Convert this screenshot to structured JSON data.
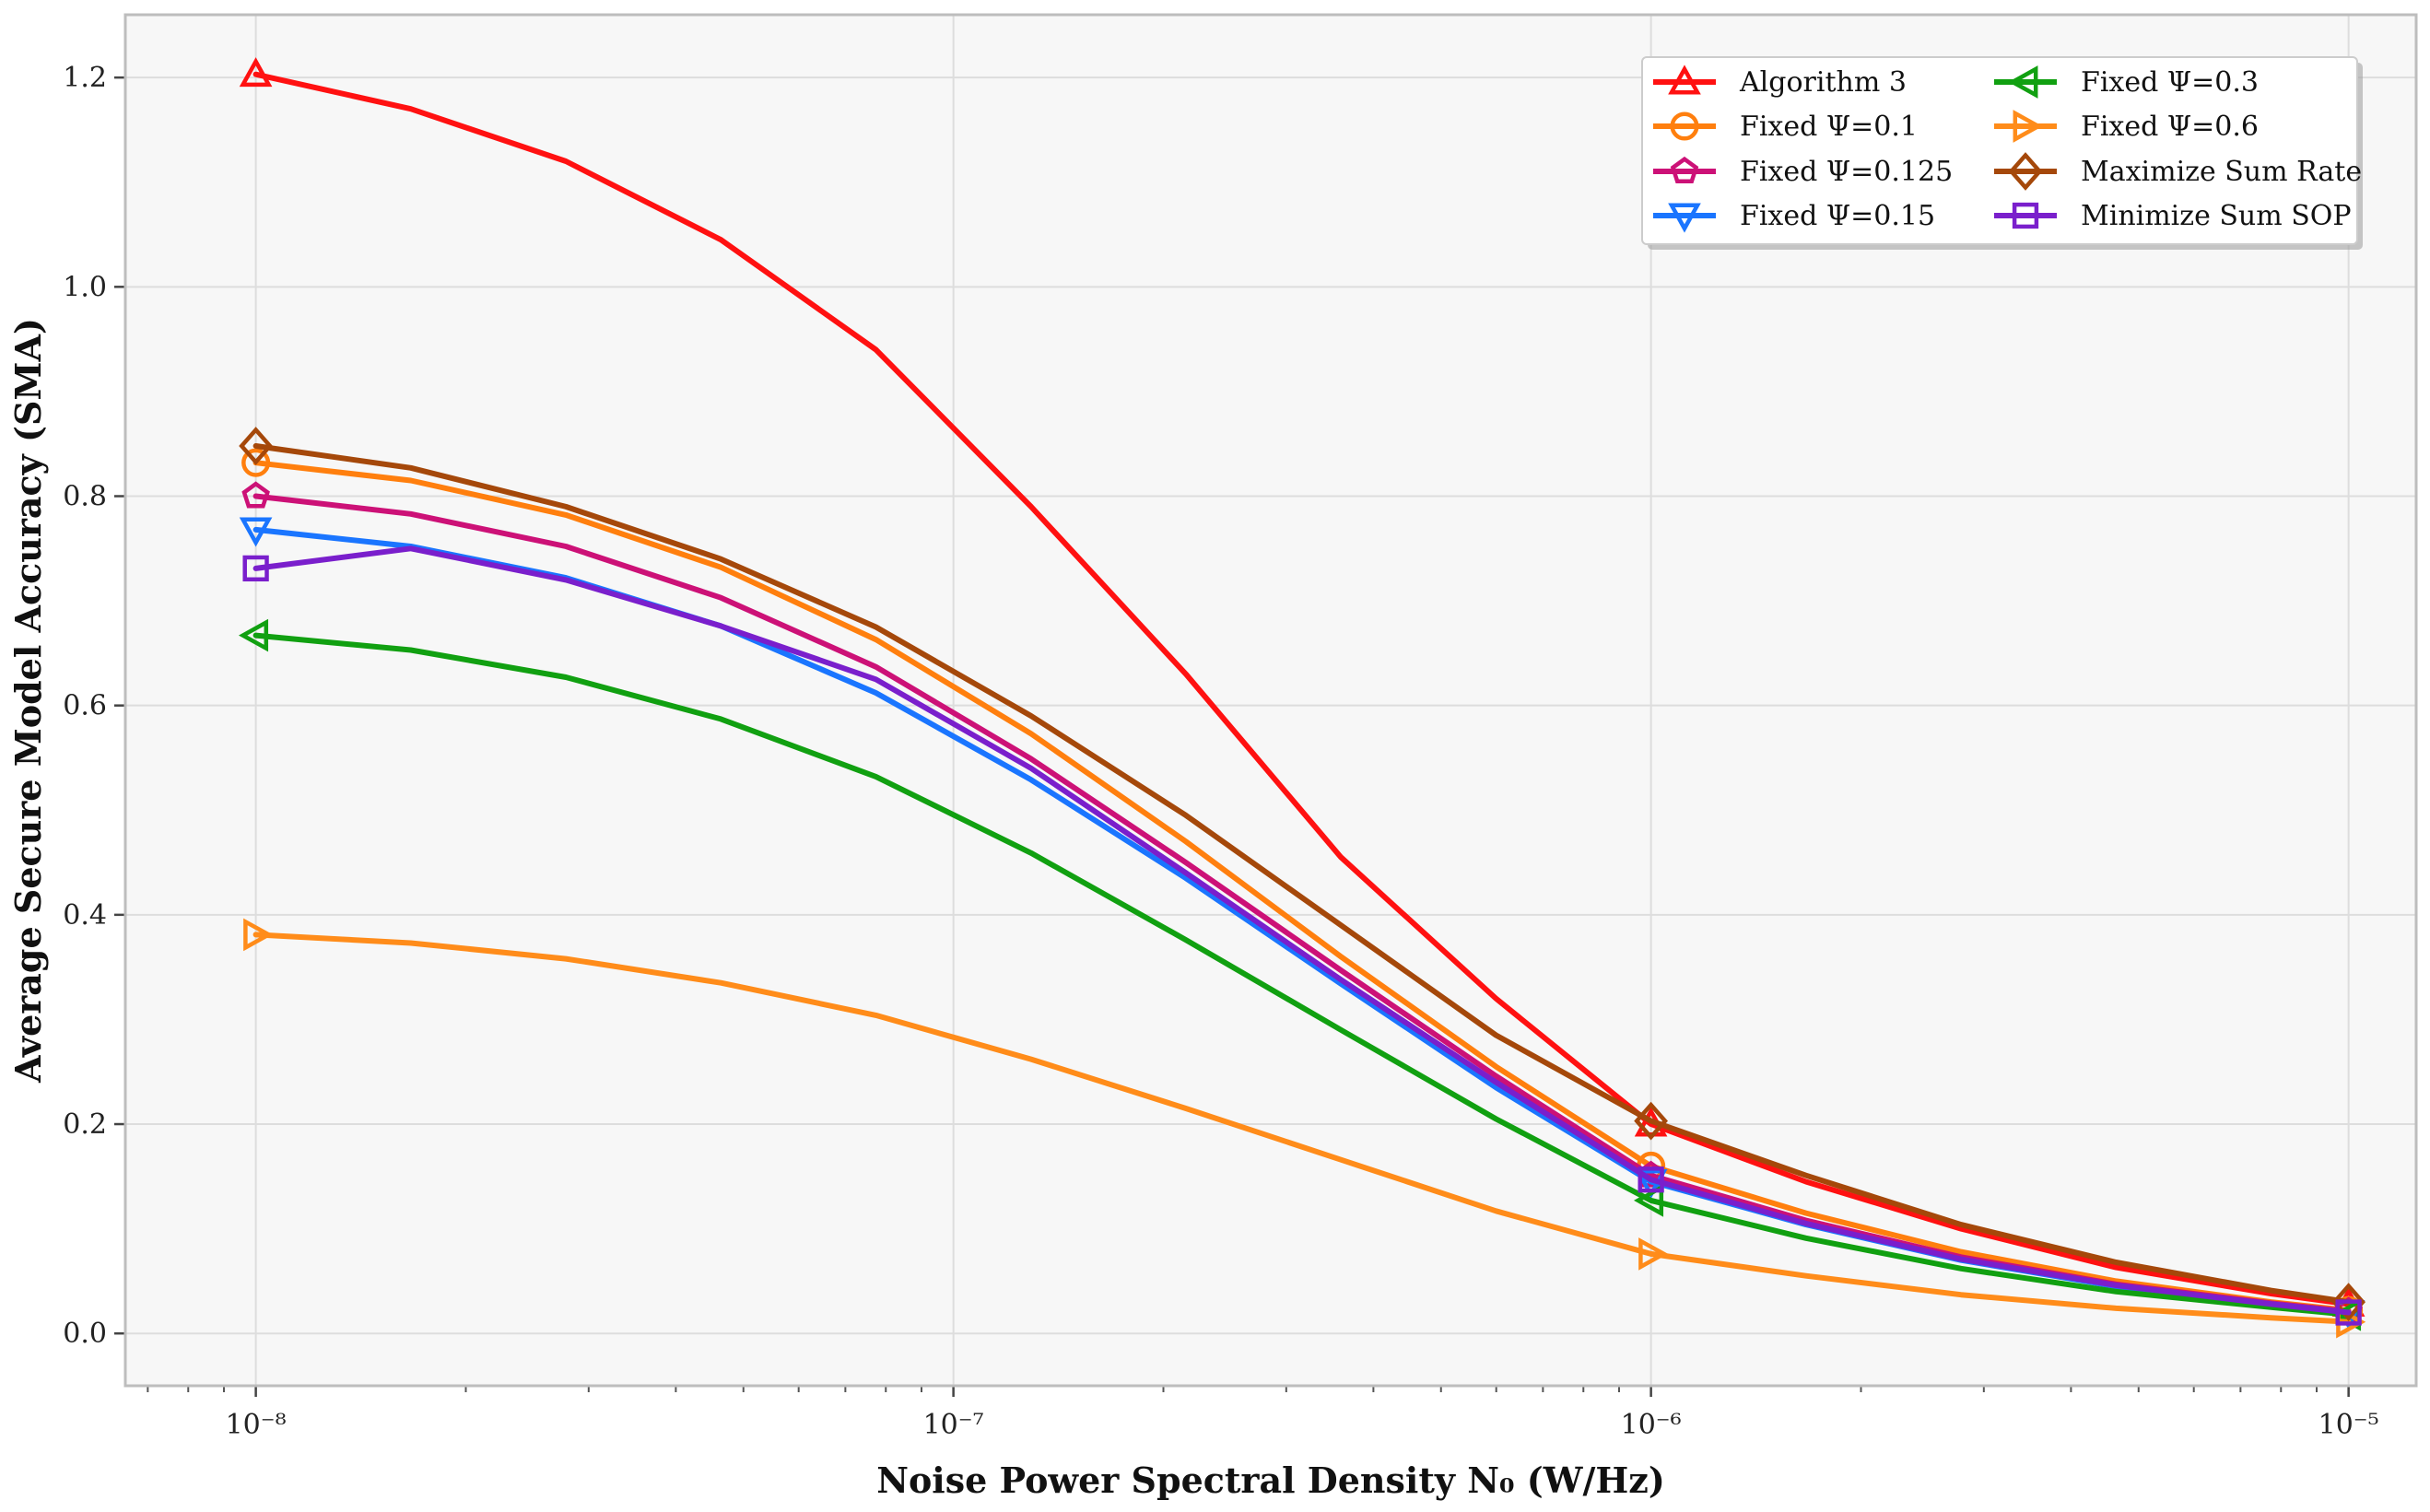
{
  "chart_data": {
    "type": "line",
    "title": "",
    "xlabel": "Noise Power Spectral Density N₀ (W/Hz)",
    "ylabel": "Average Secure Model Accuracy (SMA)",
    "xscale": "log",
    "xlim": [
      6.5e-09,
      1.25e-05
    ],
    "ylim": [
      -0.05,
      1.26
    ],
    "x_ticks": [
      1e-08,
      1e-07,
      1e-06,
      1e-05
    ],
    "x_tick_labels": [
      "10⁻⁸",
      "10⁻⁷",
      "10⁻⁶",
      "10⁻⁵"
    ],
    "y_ticks": [
      0.0,
      0.2,
      0.4,
      0.6,
      0.8,
      1.0,
      1.2
    ],
    "y_tick_labels": [
      "0.0",
      "0.2",
      "0.4",
      "0.6",
      "0.8",
      "1.0",
      "1.2"
    ],
    "grid": true,
    "legend_position": "top-right",
    "x": [
      1e-08,
      1.668e-08,
      2.783e-08,
      4.642e-08,
      7.743e-08,
      1.292e-07,
      2.154e-07,
      3.594e-07,
      5.995e-07,
      1e-06,
      1.668e-06,
      2.783e-06,
      4.642e-06,
      7.743e-06,
      1e-05
    ],
    "marker_x": [
      1e-08,
      1e-07,
      1e-06,
      1e-05
    ],
    "series": [
      {
        "name": "Algorithm 3",
        "color": "#ff1111",
        "marker": "triangle-up",
        "values": [
          1.203,
          1.17,
          1.12,
          1.045,
          0.94,
          0.79,
          0.63,
          0.455,
          0.32,
          0.2,
          0.145,
          0.1,
          0.063,
          0.038,
          0.028
        ]
      },
      {
        "name": "Fixed Ψ=0.1",
        "color": "#ff7f0e",
        "marker": "circle",
        "values": [
          0.832,
          0.815,
          0.782,
          0.732,
          0.663,
          0.573,
          0.47,
          0.36,
          0.255,
          0.16,
          0.115,
          0.078,
          0.05,
          0.03,
          0.022
        ]
      },
      {
        "name": "Fixed Ψ=0.125",
        "color": "#cc1177",
        "marker": "pentagon",
        "values": [
          0.8,
          0.783,
          0.752,
          0.703,
          0.637,
          0.549,
          0.45,
          0.347,
          0.246,
          0.151,
          0.108,
          0.073,
          0.047,
          0.029,
          0.021
        ]
      },
      {
        "name": "Fixed Ψ=0.15",
        "color": "#1a75ff",
        "marker": "triangle-down",
        "values": [
          0.768,
          0.752,
          0.722,
          0.676,
          0.612,
          0.529,
          0.435,
          0.334,
          0.235,
          0.145,
          0.104,
          0.07,
          0.045,
          0.028,
          0.02
        ]
      },
      {
        "name": "Fixed Ψ=0.3",
        "color": "#11a011",
        "marker": "triangle-left",
        "values": [
          0.667,
          0.653,
          0.627,
          0.587,
          0.532,
          0.459,
          0.376,
          0.29,
          0.205,
          0.127,
          0.091,
          0.062,
          0.04,
          0.025,
          0.018
        ]
      },
      {
        "name": "Fixed Ψ=0.6",
        "color": "#ff8c1a",
        "marker": "triangle-right",
        "values": [
          0.381,
          0.373,
          0.358,
          0.335,
          0.304,
          0.262,
          0.215,
          0.166,
          0.117,
          0.076,
          0.055,
          0.037,
          0.024,
          0.015,
          0.011
        ]
      },
      {
        "name": "Maximize Sum Rate",
        "color": "#a5480a",
        "marker": "diamond",
        "values": [
          0.848,
          0.827,
          0.79,
          0.74,
          0.675,
          0.59,
          0.495,
          0.39,
          0.285,
          0.203,
          0.151,
          0.104,
          0.068,
          0.041,
          0.03
        ]
      },
      {
        "name": "Minimize Sum SOP",
        "color": "#7a1fcc",
        "marker": "square",
        "values": [
          0.731,
          0.75,
          0.72,
          0.676,
          0.625,
          0.54,
          0.44,
          0.338,
          0.24,
          0.147,
          0.105,
          0.071,
          0.046,
          0.028,
          0.02
        ]
      }
    ]
  }
}
